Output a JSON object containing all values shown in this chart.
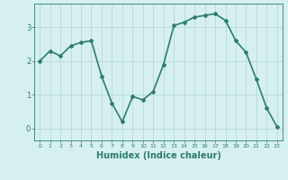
{
  "x": [
    0,
    1,
    2,
    3,
    4,
    5,
    6,
    7,
    8,
    9,
    10,
    11,
    12,
    13,
    14,
    15,
    16,
    17,
    18,
    19,
    20,
    21,
    22,
    23
  ],
  "y": [
    2.0,
    2.3,
    2.15,
    2.45,
    2.55,
    2.6,
    1.55,
    0.75,
    0.2,
    0.95,
    0.85,
    1.1,
    1.9,
    3.05,
    3.15,
    3.3,
    3.35,
    3.4,
    3.2,
    2.6,
    2.25,
    1.45,
    0.6,
    0.05
  ],
  "line_color": "#2d7d6e",
  "marker": "D",
  "marker_size": 2,
  "bg_color": "#d6f0f0",
  "grid_color": "#b8d8d8",
  "xlabel": "Humidex (Indice chaleur)",
  "xlabel_fontsize": 7,
  "ytick_labels": [
    "0",
    "1",
    "2",
    "3"
  ],
  "yticks": [
    0,
    1,
    2,
    3
  ],
  "xticks": [
    0,
    1,
    2,
    3,
    4,
    5,
    6,
    7,
    8,
    9,
    10,
    11,
    12,
    13,
    14,
    15,
    16,
    17,
    18,
    19,
    20,
    21,
    22,
    23
  ],
  "ylim": [
    -0.35,
    3.7
  ],
  "xlim": [
    -0.5,
    23.5
  ],
  "linewidth": 1.2
}
